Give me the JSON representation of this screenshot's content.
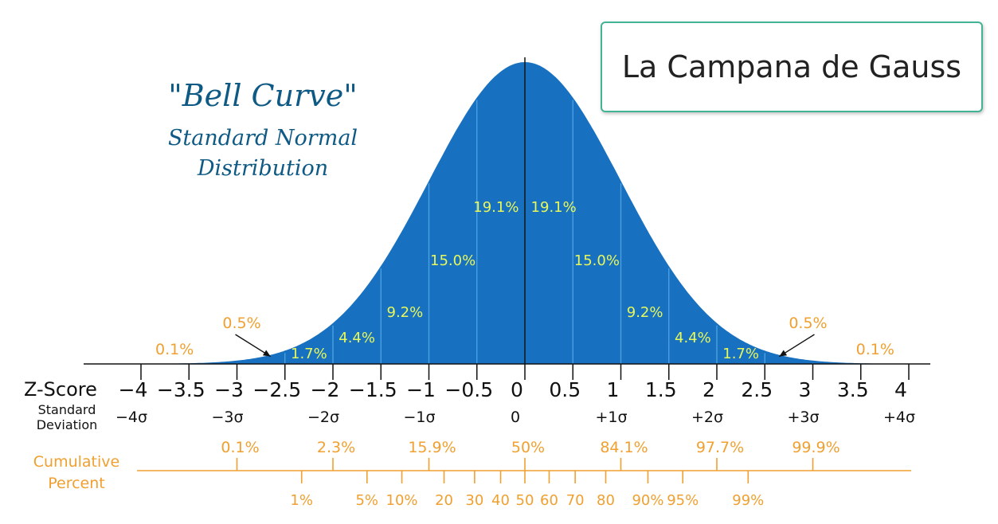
{
  "banner": {
    "title": "La Campana de Gauss"
  },
  "chart_data": {
    "type": "area",
    "title": "\"Bell Curve\"",
    "subtitle": [
      "Standard Normal",
      "Distribution"
    ],
    "xlim": [
      -4,
      4
    ],
    "z_ticks": [
      "−4",
      "−3.5",
      "−3",
      "−2.5",
      "−2",
      "−1.5",
      "−1",
      "−0.5",
      "0",
      "0.5",
      "1",
      "1.5",
      "2",
      "2.5",
      "3",
      "3.5",
      "4"
    ],
    "z_values": [
      -4,
      -3.5,
      -3,
      -2.5,
      -2,
      -1.5,
      -1,
      -0.5,
      0,
      0.5,
      1,
      1.5,
      2,
      2.5,
      3,
      3.5,
      4
    ],
    "sigma_labels": [
      "−4σ",
      "−3σ",
      "−2σ",
      "−1σ",
      "0",
      "+1σ",
      "+2σ",
      "+3σ",
      "+4σ"
    ],
    "sigma_values": [
      -4,
      -3,
      -2,
      -1,
      0,
      1,
      2,
      3,
      4
    ],
    "row_labels": {
      "zscore": "Z-Score",
      "std_dev": [
        "Standard",
        "Deviation"
      ],
      "cumulative": [
        "Cumulative",
        "Percent"
      ]
    },
    "region_percents": [
      {
        "label": "0.1%",
        "z": -3.65,
        "outside": true
      },
      {
        "label": "0.5%",
        "z": -2.95,
        "outside": true,
        "arrow_to": -2.65
      },
      {
        "label": "1.7%",
        "z": -2.25
      },
      {
        "label": "4.4%",
        "z": -1.75
      },
      {
        "label": "9.2%",
        "z": -1.25
      },
      {
        "label": "15.0%",
        "z": -0.75
      },
      {
        "label": "19.1%",
        "z": -0.3
      },
      {
        "label": "19.1%",
        "z": 0.3
      },
      {
        "label": "15.0%",
        "z": 0.75
      },
      {
        "label": "9.2%",
        "z": 1.25
      },
      {
        "label": "4.4%",
        "z": 1.75
      },
      {
        "label": "1.7%",
        "z": 2.25
      },
      {
        "label": "0.5%",
        "z": 2.95,
        "outside": true,
        "arrow_to": 2.65
      },
      {
        "label": "0.1%",
        "z": 3.65,
        "outside": true
      }
    ],
    "cumulative_major": [
      {
        "label": "0.1%",
        "z": -3
      },
      {
        "label": "2.3%",
        "z": -2
      },
      {
        "label": "15.9%",
        "z": -1
      },
      {
        "label": "50%",
        "z": 0
      },
      {
        "label": "84.1%",
        "z": 1
      },
      {
        "label": "97.7%",
        "z": 2
      },
      {
        "label": "99.9%",
        "z": 3
      }
    ],
    "percentiles": [
      {
        "label": "1%",
        "z": -2.326
      },
      {
        "label": "5%",
        "z": -1.645
      },
      {
        "label": "10%",
        "z": -1.282
      },
      {
        "label": "20",
        "z": -0.842
      },
      {
        "label": "30",
        "z": -0.524
      },
      {
        "label": "40",
        "z": -0.253
      },
      {
        "label": "50",
        "z": 0
      },
      {
        "label": "60",
        "z": 0.253
      },
      {
        "label": "70",
        "z": 0.524
      },
      {
        "label": "80",
        "z": 0.842
      },
      {
        "label": "90%",
        "z": 1.282
      },
      {
        "label": "95%",
        "z": 1.645
      },
      {
        "label": "99%",
        "z": 2.326
      }
    ],
    "colors": {
      "fill": "#1771c0",
      "divider": "#4fa3e0",
      "pct_inside": "#e8f75a",
      "pct_outside": "#f0a030",
      "cumulative": "#f0a030",
      "axis": "#111111",
      "title": "#0f5a85"
    }
  }
}
